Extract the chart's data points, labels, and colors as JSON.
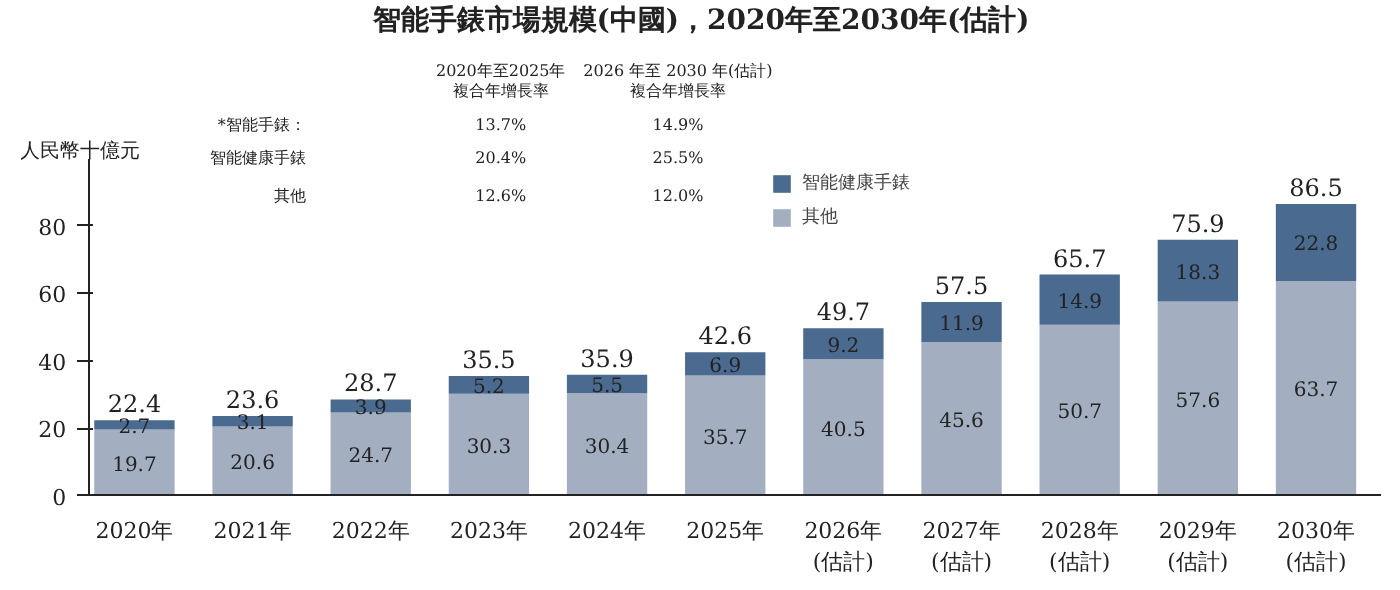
{
  "chart_data": {
    "type": "bar",
    "title": "智能手錶市場規模(中國)，2020年至2030年(估計)",
    "ylabel": "人民幣十億元",
    "categories": [
      "2020年",
      "2021年",
      "2022年",
      "2023年",
      "2024年",
      "2025年",
      "2026年\n(估計)",
      "2027年\n(估計)",
      "2028年\n(估計)",
      "2029年\n(估計)",
      "2030年\n(估計)"
    ],
    "stacked": true,
    "series": [
      {
        "name": "其他",
        "color": "#a3afc0",
        "values": [
          19.7,
          20.6,
          24.7,
          30.3,
          30.4,
          35.7,
          40.5,
          45.6,
          50.7,
          57.6,
          63.7
        ]
      },
      {
        "name": "智能健康手錶",
        "color": "#4a6a8f",
        "values": [
          2.7,
          3.1,
          3.9,
          5.2,
          5.5,
          6.9,
          9.2,
          11.9,
          14.9,
          18.3,
          22.8
        ]
      }
    ],
    "totals": [
      "22.4",
      "23.6",
      "28.7",
      "35.5",
      "35.9",
      "42.6",
      "49.7",
      "57.5",
      "65.7",
      "75.9",
      "86.5"
    ],
    "data_labels": true,
    "ylim": [
      0,
      100
    ],
    "yticks": [
      0,
      20,
      40,
      60,
      80
    ],
    "legend": "top",
    "annotations": [
      "2020年至2025年",
      "複合年增長率",
      "2026 年至 2030 年(估計)",
      "複合年增長率",
      "*智能手錶：",
      "13.7%",
      "14.9%",
      "智能健康手錶",
      "20.4%",
      "25.5%",
      "其他",
      "12.6%",
      "12.0%"
    ]
  }
}
